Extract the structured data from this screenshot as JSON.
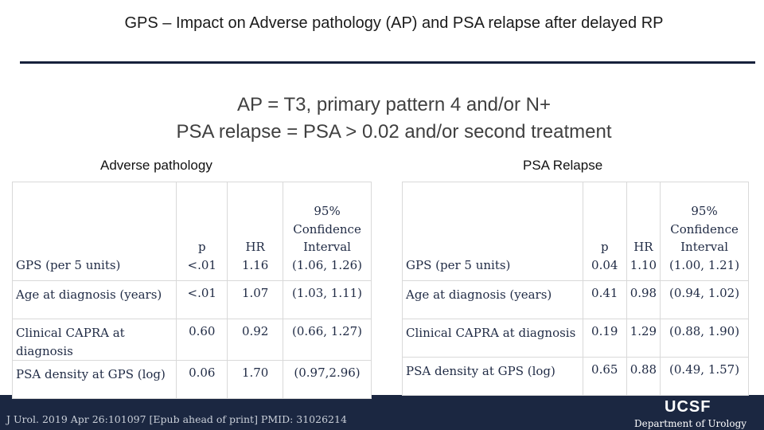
{
  "title": "GPS – Impact on Adverse pathology (AP) and PSA relapse after delayed RP",
  "subtitle_line1": "AP = T3, primary pattern 4 and/or N+",
  "subtitle_line2": "PSA relapse = PSA > 0.02 and/or second treatment",
  "left_label": "Adverse pathology",
  "right_label": "PSA Relapse",
  "columns": {
    "p": "p",
    "hr": "HR",
    "ci_line1": "95%",
    "ci_line2": "Confidence",
    "ci_line3": "Interval"
  },
  "adverse_pathology": {
    "rows": [
      {
        "name": "GPS (per 5 units)",
        "p": "<.01",
        "hr": "1.16",
        "ci": "(1.06, 1.26)"
      },
      {
        "name": "Age at diagnosis (years)",
        "p": "<.01",
        "hr": "1.07",
        "ci": "(1.03, 1.11)"
      },
      {
        "name": "Clinical CAPRA at diagnosis",
        "p": "0.60",
        "hr": "0.92",
        "ci": "(0.66, 1.27)"
      },
      {
        "name": "PSA density at GPS (log)",
        "p": "0.06",
        "hr": "1.70",
        "ci": "(0.97,2.96)"
      }
    ]
  },
  "psa_relapse": {
    "rows": [
      {
        "name": "GPS (per 5 units)",
        "p": "0.04",
        "hr": "1.10",
        "ci": "(1.00, 1.21)"
      },
      {
        "name": "Age at diagnosis (years)",
        "p": "0.41",
        "hr": "0.98",
        "ci": "(0.94, 1.02)"
      },
      {
        "name": "Clinical CAPRA at diagnosis",
        "p": "0.19",
        "hr": "1.29",
        "ci": "(0.88, 1.90)"
      },
      {
        "name": "PSA density at GPS (log)",
        "p": "0.65",
        "hr": "0.88",
        "ci": "(0.49, 1.57)"
      }
    ]
  },
  "citation": "J Urol. 2019 Apr 26:101097 [Epub ahead of print] PMID: 31026214",
  "logo_text": "UCSF",
  "department": "Department of Urology",
  "colors": {
    "band": "#1b2741",
    "rule": "#16213b",
    "table_text": "#1f2a44"
  }
}
